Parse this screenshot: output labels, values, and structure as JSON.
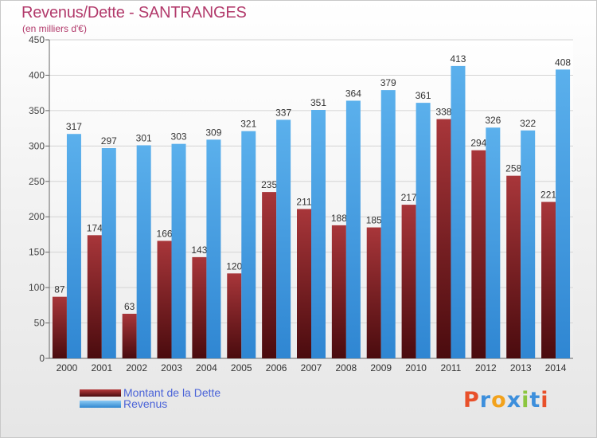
{
  "header": {
    "title": "Revenus/Dette - SANTRANGES",
    "subtitle": "(en milliers d'€)"
  },
  "colors": {
    "dette": "#7a1e22",
    "revenus": "#4aa2e4",
    "title": "#b23a6b",
    "legend_text": "#4a63d8"
  },
  "chart_data": {
    "type": "bar",
    "title": "Revenus/Dette - SANTRANGES",
    "ylabel": "(en milliers d'€)",
    "categories": [
      "2000",
      "2001",
      "2002",
      "2003",
      "2004",
      "2005",
      "2006",
      "2007",
      "2008",
      "2009",
      "2010",
      "2011",
      "2012",
      "2013",
      "2014"
    ],
    "ylim": [
      0,
      450
    ],
    "yticks": [
      0,
      50,
      100,
      150,
      200,
      250,
      300,
      350,
      400,
      450
    ],
    "grid": true,
    "legend_position": "bottom-left",
    "series": [
      {
        "name": "Montant de la Dette",
        "color": "#7a1e22",
        "values": [
          87,
          174,
          63,
          166,
          143,
          120,
          235,
          211,
          188,
          185,
          217,
          338,
          294,
          258,
          221
        ]
      },
      {
        "name": "Revenus",
        "color": "#4aa2e4",
        "values": [
          317,
          297,
          301,
          303,
          309,
          321,
          337,
          351,
          364,
          379,
          361,
          413,
          326,
          322,
          408
        ]
      }
    ]
  },
  "legend": {
    "items": [
      {
        "label": "Montant de la Dette",
        "color": "#7a1e22"
      },
      {
        "label": "Revenus",
        "color": "#4aa2e4"
      }
    ]
  },
  "logo": {
    "letters": [
      "P",
      "r",
      "o",
      "x",
      "i",
      "t",
      "i"
    ],
    "colors": [
      "#e8502a",
      "#3d8fdc",
      "#f2a21c",
      "#3d8fdc",
      "#8cc63f",
      "#3d8fdc",
      "#e8502a"
    ]
  }
}
